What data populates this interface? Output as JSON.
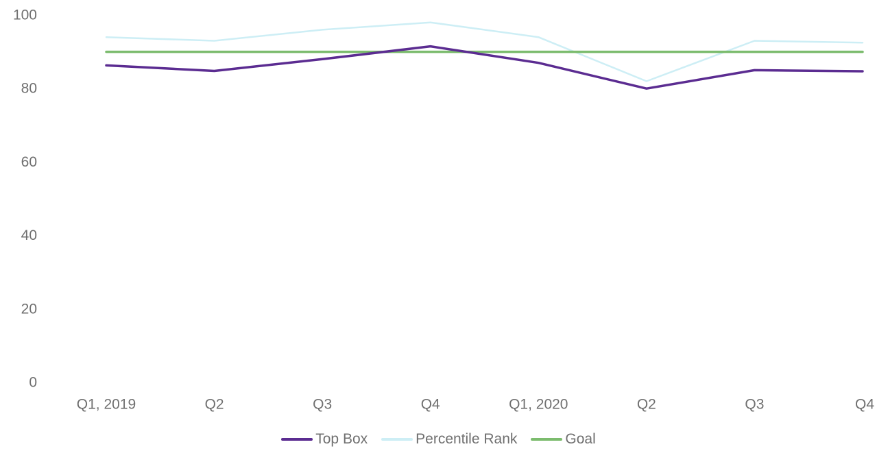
{
  "chart_data": {
    "type": "line",
    "title": "",
    "xlabel": "",
    "ylabel": "",
    "categories": [
      "Q1, 2019",
      "Q2",
      "Q3",
      "Q4",
      "Q1, 2020",
      "Q2",
      "Q3",
      "Q4"
    ],
    "ylim": [
      0,
      100
    ],
    "yticks": [
      0,
      20,
      40,
      60,
      80,
      100
    ],
    "grid": false,
    "legend_position": "bottom",
    "series": [
      {
        "name": "Top Box",
        "color": "#5b2c91",
        "values": [
          86.3,
          84.8,
          88.0,
          91.5,
          87.0,
          80.0,
          85.0,
          84.7
        ]
      },
      {
        "name": "Percentile Rank",
        "color": "#cdeef5",
        "values": [
          94.0,
          93.0,
          96.0,
          98.0,
          94.0,
          82.0,
          93.0,
          92.5
        ]
      },
      {
        "name": "Goal",
        "color": "#7cbc6e",
        "values": [
          90,
          90,
          90,
          90,
          90,
          90,
          90,
          90
        ]
      }
    ]
  }
}
